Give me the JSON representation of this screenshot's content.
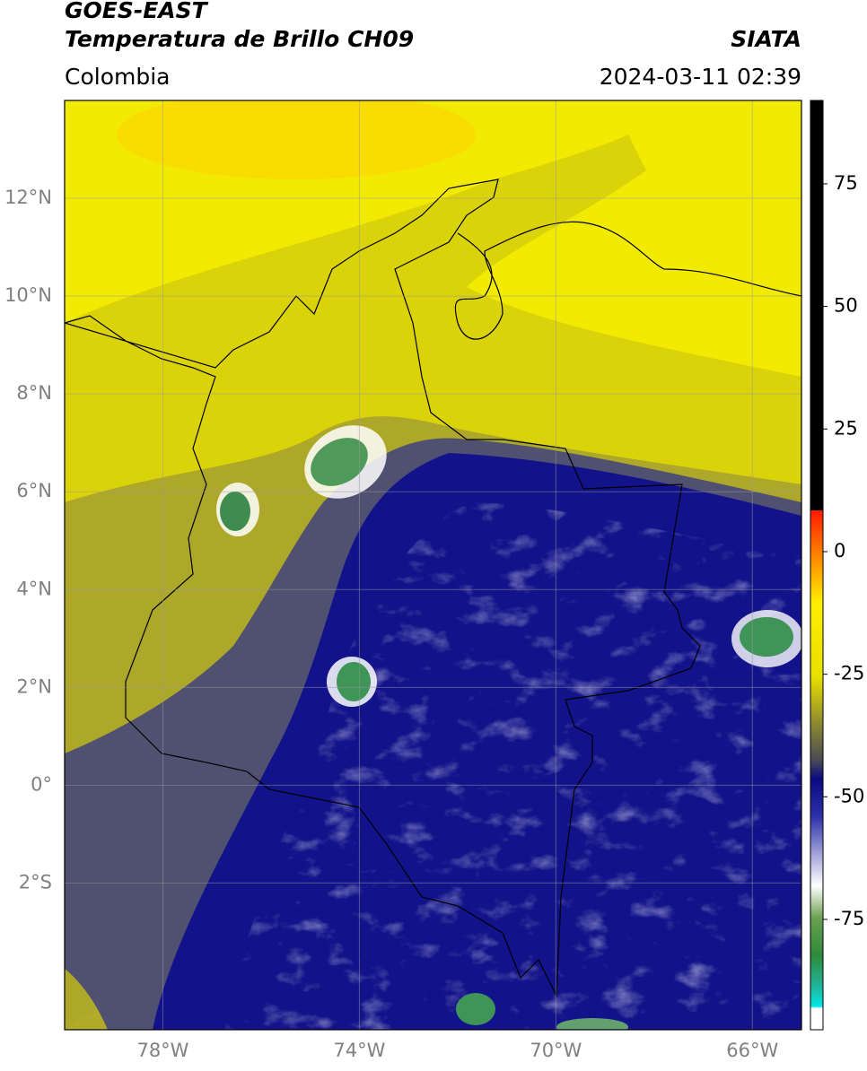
{
  "header": {
    "title": "GOES-EAST",
    "subtitle": "Temperatura de Brillo CH09",
    "source": "SIATA",
    "region": "Colombia",
    "datetime": "2024-03-11 02:39"
  },
  "map": {
    "lonlim": [
      -80,
      -65
    ],
    "latlim": [
      -5,
      14
    ],
    "lon_ticks": [
      {
        "value": -78,
        "label": "78°W"
      },
      {
        "value": -74,
        "label": "74°W"
      },
      {
        "value": -70,
        "label": "70°W"
      },
      {
        "value": -66,
        "label": "66°W"
      }
    ],
    "lat_ticks": [
      {
        "value": 12,
        "label": "12°N"
      },
      {
        "value": 10,
        "label": "10°N"
      },
      {
        "value": 8,
        "label": "8°N"
      },
      {
        "value": 6,
        "label": "6°N"
      },
      {
        "value": 4,
        "label": "4°N"
      },
      {
        "value": 2,
        "label": "2°N"
      },
      {
        "value": 0,
        "label": "0°"
      },
      {
        "value": -2,
        "label": "2°S"
      }
    ]
  },
  "colorbar": {
    "lim": [
      -97.5,
      92
    ],
    "ticks": [
      75,
      50,
      25,
      0,
      -25,
      -50,
      -75
    ]
  }
}
